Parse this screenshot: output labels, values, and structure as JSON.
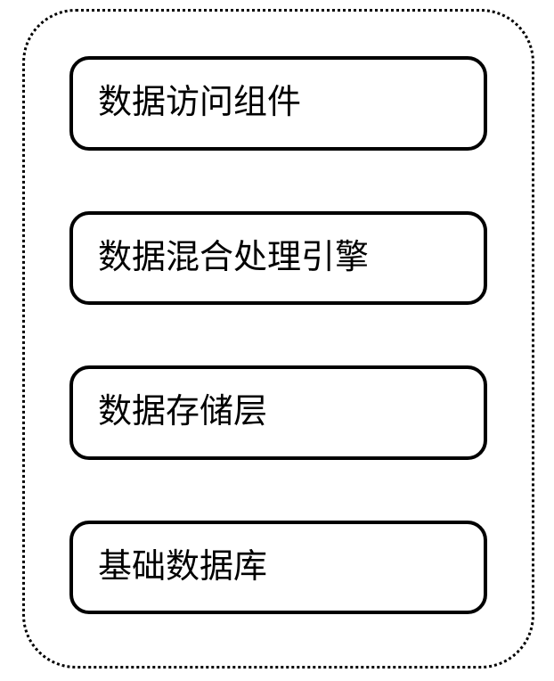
{
  "diagram": {
    "type": "layered_architecture",
    "container": {
      "border_style": "dotted",
      "border_color": "#000000",
      "border_width": 3,
      "border_radius": 60,
      "background_color": "#ffffff"
    },
    "layer_style": {
      "border_style": "solid",
      "border_color": "#000000",
      "border_width": 4,
      "border_radius": 22,
      "font_size": 38,
      "text_color": "#000000",
      "background_color": "#ffffff"
    },
    "layers": [
      {
        "label": "数据访问组件"
      },
      {
        "label": "数据混合处理引擎"
      },
      {
        "label": "数据存储层"
      },
      {
        "label": "基础数据库"
      }
    ]
  }
}
